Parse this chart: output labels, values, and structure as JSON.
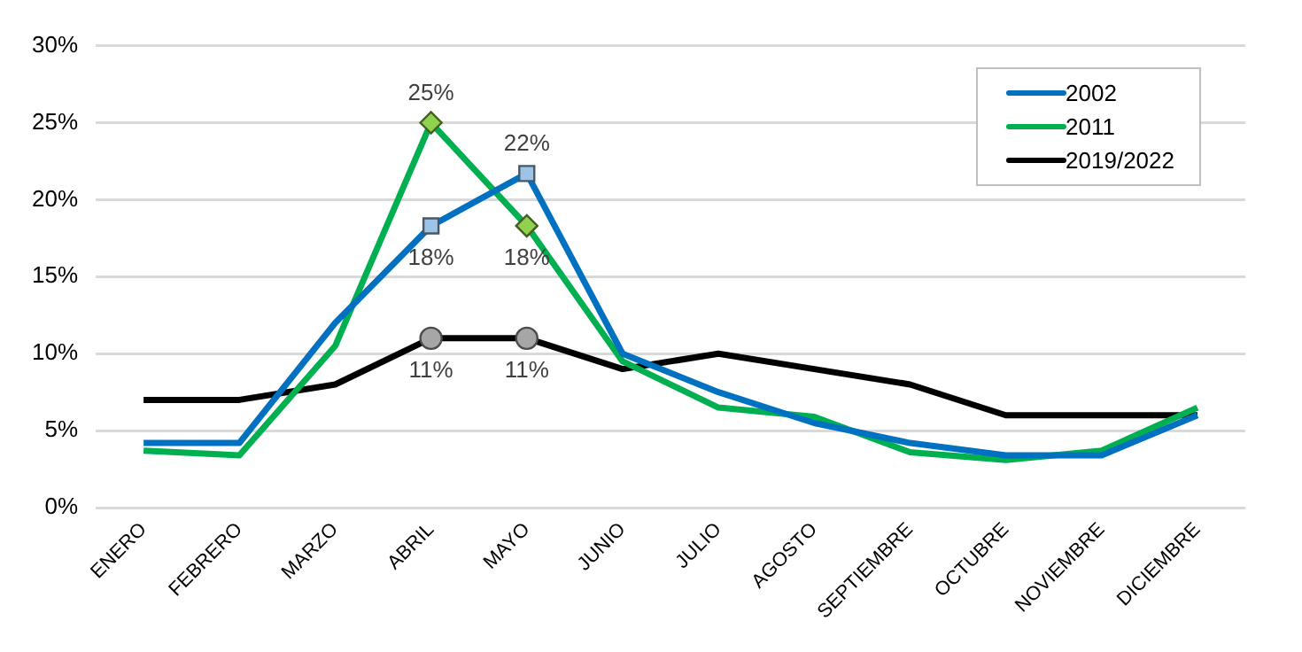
{
  "chart_data": {
    "type": "line",
    "categories": [
      "ENERO",
      "FEBRERO",
      "MARZO",
      "ABRIL",
      "MAYO",
      "JUNIO",
      "JULIO",
      "AGOSTO",
      "SEPTIEMBRE",
      "OCTUBRE",
      "NOVIEMBRE",
      "DICIEMBRE"
    ],
    "series": [
      {
        "name": "2002",
        "color": "#0070c0",
        "values": [
          4.2,
          4.2,
          12,
          18.3,
          21.7,
          10,
          7.5,
          5.5,
          4.2,
          3.4,
          3.4,
          6
        ]
      },
      {
        "name": "2011",
        "color": "#00b050",
        "values": [
          3.7,
          3.4,
          10.5,
          25,
          18.3,
          9.5,
          6.5,
          5.9,
          3.6,
          3.1,
          3.7,
          6.5
        ]
      },
      {
        "name": "2019/2022",
        "color": "#000000",
        "values": [
          7,
          7,
          8,
          11,
          11,
          9,
          10,
          9,
          8,
          6,
          6,
          6
        ]
      },
      {
        "type": "scatter",
        "marker": "square",
        "color": "#9dc3e6",
        "x": [
          "ABRIL",
          "MAYO"
        ],
        "values": [
          18.3,
          21.7
        ],
        "value_labels": [
          "18%",
          "22%"
        ]
      },
      {
        "type": "scatter",
        "marker": "diamond",
        "color": "#92d050",
        "x": [
          "ABRIL",
          "MAYO"
        ],
        "values": [
          25,
          18.3
        ],
        "value_labels": [
          "25%",
          "18%"
        ]
      },
      {
        "type": "scatter",
        "marker": "circle",
        "color": "#a6a6a6",
        "x": [
          "ABRIL",
          "MAYO"
        ],
        "values": [
          11,
          11
        ],
        "value_labels": [
          "11%",
          "11%"
        ]
      }
    ],
    "ylim": [
      0,
      30
    ],
    "yticks": [
      {
        "value": 0,
        "label": "0%"
      },
      {
        "value": 5,
        "label": "5%"
      },
      {
        "value": 10,
        "label": "10%"
      },
      {
        "value": 15,
        "label": "15%"
      },
      {
        "value": 20,
        "label": "20%"
      },
      {
        "value": 25,
        "label": "25%"
      },
      {
        "value": 30,
        "label": "30%"
      }
    ],
    "grid": "y",
    "legend": "top right",
    "line_style": "solid"
  }
}
